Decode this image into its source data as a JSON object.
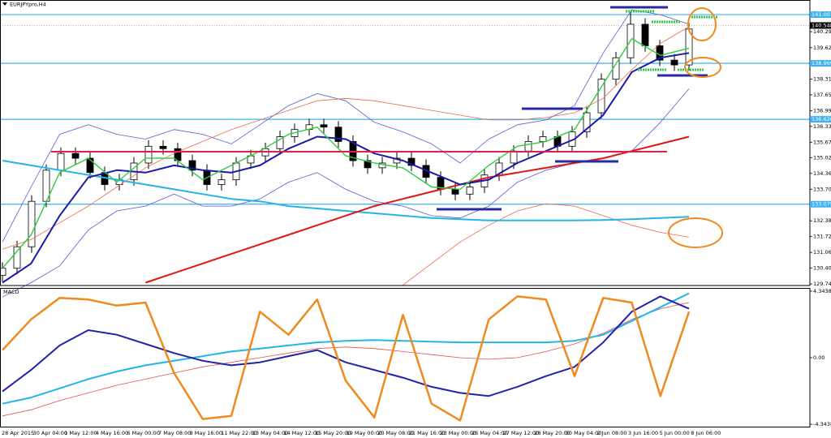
{
  "chart_data": [
    {
      "type": "candlestick",
      "title": "EURJPYpro,H4",
      "ylim": [
        129.68,
        141.58
      ],
      "yticks": [
        {
          "value": 140.29,
          "label": "140.290"
        },
        {
          "value": 139.62,
          "label": "139.620"
        },
        {
          "value": 138.31,
          "label": "138.310"
        },
        {
          "value": 137.65,
          "label": "137.650"
        },
        {
          "value": 136.99,
          "label": "136.990"
        },
        {
          "value": 136.33,
          "label": "136.330"
        },
        {
          "value": 135.67,
          "label": "135.670"
        },
        135.025,
        134.365,
        133.705,
        132.385,
        131.725,
        131.065,
        130.405,
        129.745
      ],
      "levels": [
        141.001,
        138.969,
        136.626,
        133.079
      ],
      "current_price": 140.548,
      "open": [
        130.1,
        130.4,
        131.3,
        133.2,
        134.5,
        135.2,
        135.0,
        134.4,
        133.9,
        134.1,
        134.8,
        135.5,
        135.4,
        134.9,
        134.5,
        133.9,
        134.1,
        134.8,
        135.1,
        135.4,
        135.9,
        136.2,
        136.4,
        136.3,
        135.7,
        134.9,
        134.6,
        134.8,
        135.0,
        134.7,
        134.2,
        133.7,
        133.5,
        133.8,
        134.3,
        134.8,
        135.3,
        135.7,
        135.9,
        135.5,
        136.1,
        136.9,
        138.3,
        139.2,
        140.6,
        139.7,
        139.1,
        138.9
      ],
      "high": [
        130.65,
        131.55,
        133.45,
        134.75,
        135.45,
        135.45,
        135.25,
        134.65,
        134.35,
        135.05,
        135.75,
        135.75,
        135.65,
        135.15,
        134.75,
        134.35,
        135.05,
        135.35,
        135.65,
        136.15,
        136.45,
        136.65,
        136.65,
        136.55,
        135.95,
        135.15,
        135.05,
        135.25,
        135.25,
        134.95,
        134.45,
        133.95,
        134.05,
        134.55,
        135.05,
        135.55,
        135.95,
        136.15,
        136.15,
        136.35,
        137.15,
        138.55,
        139.45,
        141.1,
        140.85,
        139.95,
        139.35,
        140.65
      ],
      "low": [
        129.85,
        130.15,
        131.05,
        132.95,
        134.25,
        134.75,
        134.15,
        133.65,
        133.65,
        133.85,
        134.55,
        135.15,
        134.65,
        134.25,
        133.65,
        133.65,
        133.85,
        134.55,
        134.85,
        135.15,
        135.65,
        135.95,
        136.05,
        135.45,
        134.65,
        134.35,
        134.35,
        134.55,
        134.45,
        133.95,
        133.45,
        133.25,
        133.25,
        133.55,
        134.05,
        134.55,
        135.05,
        135.45,
        135.25,
        135.25,
        135.85,
        136.65,
        138.05,
        138.95,
        139.45,
        138.85,
        138.65,
        138.65
      ],
      "close": [
        130.4,
        131.3,
        133.2,
        134.5,
        135.2,
        135.0,
        134.4,
        133.9,
        134.1,
        134.8,
        135.5,
        135.4,
        134.9,
        134.5,
        133.9,
        134.1,
        134.8,
        135.1,
        135.4,
        135.9,
        136.2,
        136.4,
        136.3,
        135.7,
        134.9,
        134.6,
        134.8,
        135.0,
        134.7,
        134.2,
        133.7,
        133.5,
        133.8,
        134.3,
        134.8,
        135.3,
        135.7,
        135.9,
        135.5,
        136.1,
        136.9,
        138.3,
        139.2,
        140.6,
        139.7,
        139.1,
        138.9,
        140.4
      ],
      "series": [
        {
          "color": "#5a5ad0",
          "values": [
            131.5,
            133.8,
            136.0,
            136.4,
            136.0,
            135.8,
            136.2,
            136.0,
            135.6,
            136.4,
            137.2,
            137.7,
            137.4,
            136.5,
            136.1,
            135.6,
            134.8,
            135.8,
            136.4,
            136.6,
            137.2,
            139.4,
            141.2,
            141.0,
            140.6
          ]
        },
        {
          "color": "#5a5ad0",
          "values": [
            129.2,
            129.8,
            130.5,
            132.0,
            132.8,
            133.0,
            133.5,
            133.0,
            133.0,
            133.3,
            134.0,
            134.4,
            133.7,
            133.2,
            133.0,
            132.6,
            132.5,
            133.0,
            134.0,
            134.5,
            134.8,
            135.0,
            135.3,
            136.5,
            137.9
          ]
        },
        {
          "color": "#ec6a4a",
          "values": [
            131.2,
            131.6,
            132.3,
            133.0,
            133.8,
            134.6,
            135.2,
            135.7,
            136.2,
            136.6,
            137.0,
            137.4,
            137.5,
            137.4,
            137.2,
            137.0,
            136.8,
            136.6,
            136.6,
            136.7,
            136.9,
            137.5,
            138.7,
            139.8,
            140.5
          ]
        },
        {
          "color": "#ec6a4a",
          "values": [
            null,
            null,
            null,
            null,
            null,
            null,
            null,
            null,
            null,
            null,
            null,
            null,
            null,
            null,
            129.7,
            130.6,
            131.5,
            132.2,
            132.8,
            133.1,
            133.0,
            132.6,
            132.2,
            131.9,
            131.7
          ]
        },
        {
          "color": "#22b5e8",
          "values": [
            134.9,
            134.7,
            134.5,
            134.3,
            134.1,
            133.9,
            133.7,
            133.5,
            133.3,
            133.2,
            133.0,
            132.9,
            132.8,
            132.7,
            132.6,
            132.5,
            132.45,
            132.4,
            132.4,
            132.4,
            132.4,
            132.42,
            132.45,
            132.5,
            132.55
          ]
        },
        {
          "color": "#e01515",
          "values": [
            null,
            null,
            null,
            null,
            null,
            129.8,
            130.2,
            130.6,
            131.0,
            131.4,
            131.8,
            132.2,
            132.6,
            133.0,
            133.3,
            133.6,
            133.9,
            134.2,
            134.4,
            134.6,
            134.8,
            135.0,
            135.3,
            135.6,
            135.9
          ]
        },
        {
          "color": "#1a1aa8",
          "values": [
            129.8,
            130.6,
            132.6,
            134.2,
            134.5,
            134.4,
            134.7,
            134.5,
            134.4,
            134.7,
            135.4,
            135.9,
            135.8,
            135.2,
            134.9,
            134.4,
            133.9,
            134.1,
            134.8,
            135.3,
            135.8,
            136.8,
            138.6,
            139.2,
            139.4
          ]
        },
        {
          "color": "#2ecc40",
          "values": [
            130.4,
            131.8,
            134.4,
            135.0,
            134.0,
            135.0,
            135.0,
            134.1,
            134.7,
            135.3,
            136.0,
            136.3,
            135.1,
            134.8,
            134.6,
            133.8,
            133.7,
            134.7,
            135.5,
            135.7,
            136.2,
            138.1,
            140.0,
            139.3,
            139.6
          ]
        }
      ]
    },
    {
      "type": "line",
      "title": "MACD",
      "ylim": [
        -4.5,
        4.5
      ],
      "yticks": [
        4.3438,
        {
          "value": 0,
          "label": "0.00"
        },
        -4.3438
      ],
      "x_labels": [
        "28 Apr 2015",
        "30 Apr 04:00",
        "1 May 12:00",
        "4 May 16:00",
        "6 May 00:00",
        "7 May 08:00",
        "8 May 16:00",
        "11 May 22:00",
        "13 May 04:00",
        "14 May 12:00",
        "15 May 20:00",
        "19 May 00:00",
        "20 May 08:00",
        "21 May 16:00",
        "23 May 00:00",
        "26 May 04:00",
        "27 May 12:00",
        "28 May 20:00",
        "30 May 04:00",
        "2 Jun 08:00",
        "3 Jun 16:00",
        "5 Jun 00:00",
        "8 Jun 06:00"
      ],
      "series": [
        {
          "color": "#e05050",
          "values": [
            -3.8,
            -3.4,
            -2.8,
            -2.3,
            -1.8,
            -1.4,
            -1.0,
            -0.6,
            -0.3,
            0.0,
            0.3,
            0.6,
            0.7,
            0.6,
            0.4,
            0.2,
            0.0,
            -0.1,
            0.0,
            0.4,
            0.9,
            1.6,
            2.5,
            3.2,
            3.6
          ]
        },
        {
          "color": "#22b5e8",
          "values": [
            -3.0,
            -2.6,
            -2.0,
            -1.4,
            -0.9,
            -0.5,
            -0.2,
            0.1,
            0.4,
            0.6,
            0.8,
            1.0,
            1.1,
            1.15,
            1.1,
            1.05,
            1.0,
            1.0,
            1.0,
            1.0,
            1.1,
            1.5,
            2.4,
            3.3,
            4.2
          ]
        },
        {
          "color": "#2222aa",
          "values": [
            -2.2,
            -0.8,
            0.8,
            1.8,
            1.5,
            0.9,
            0.3,
            -0.2,
            -0.5,
            -0.3,
            0.1,
            0.5,
            -0.3,
            -0.8,
            -1.3,
            -1.9,
            -2.3,
            -2.5,
            -1.9,
            -1.2,
            -0.6,
            1.0,
            3.0,
            4.0,
            3.2
          ]
        },
        {
          "color": "#f08a1e",
          "values": [
            0.5,
            2.5,
            3.9,
            3.8,
            3.4,
            3.6,
            -1.0,
            -4.0,
            -3.8,
            3.0,
            1.5,
            3.8,
            -1.5,
            -3.9,
            2.8,
            -3.0,
            -4.1,
            2.5,
            4.0,
            3.8,
            -1.2,
            3.9,
            3.6,
            -2.5,
            3.0
          ]
        }
      ]
    }
  ]
}
